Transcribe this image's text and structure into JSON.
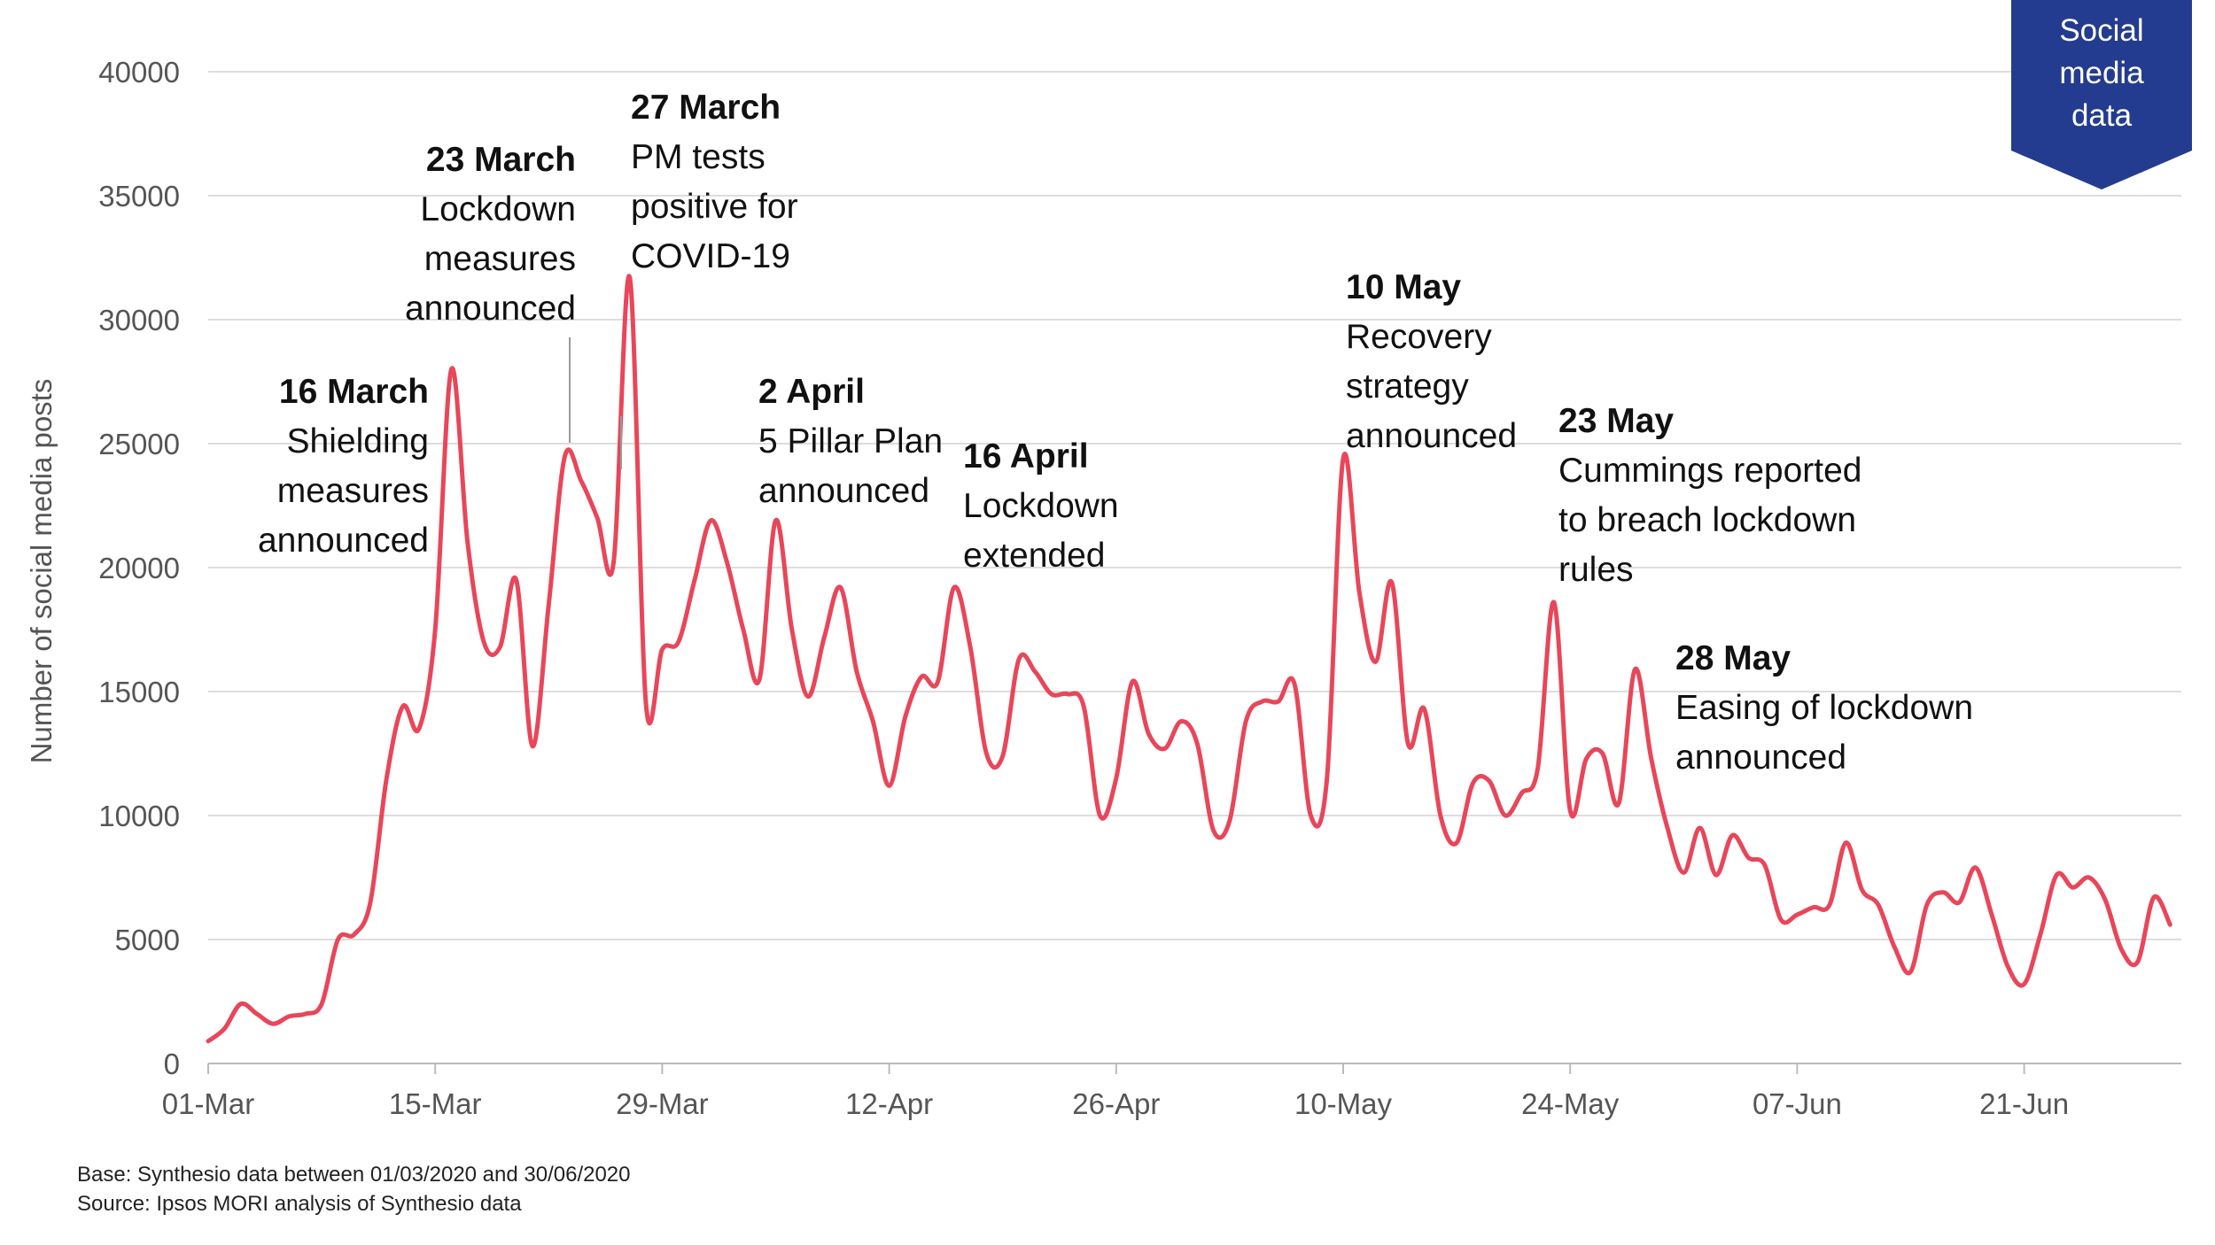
{
  "chart_data": {
    "type": "line",
    "ylabel": "Number of  social media posts",
    "ylim": [
      0,
      40000
    ],
    "yticks": [
      0,
      5000,
      10000,
      15000,
      20000,
      25000,
      30000,
      35000,
      40000
    ],
    "xticks": [
      "01-Mar",
      "15-Mar",
      "29-Mar",
      "12-Apr",
      "26-Apr",
      "10-May",
      "24-May",
      "07-Jun",
      "21-Jun"
    ],
    "grid": true,
    "series": [
      {
        "color": "#e8465a",
        "start_date": "2020-03-01",
        "values": [
          900,
          1400,
          2400,
          2000,
          1600,
          1900,
          2000,
          2400,
          5000,
          5200,
          6500,
          11500,
          14400,
          13500,
          17500,
          28000,
          21000,
          17000,
          16800,
          19500,
          12800,
          18500,
          24500,
          23500,
          22000,
          20200,
          31700,
          14500,
          16700,
          17000,
          19500,
          21900,
          20200,
          17500,
          15500,
          21900,
          17500,
          14800,
          17200,
          19200,
          15800,
          13800,
          11200,
          14000,
          15600,
          15400,
          19200,
          16800,
          12500,
          12400,
          16300,
          15800,
          14900,
          14900,
          14400,
          10000,
          11500,
          15400,
          13300,
          12700,
          13800,
          12900,
          9400,
          9800,
          13800,
          14600,
          14600,
          15300,
          10000,
          11500,
          24400,
          19000,
          16200,
          19400,
          12900,
          14300,
          10000,
          8900,
          11300,
          11400,
          10000,
          10900,
          11900,
          18600,
          10200,
          12300,
          12500,
          10500,
          15900,
          12300,
          9500,
          7700,
          9500,
          7600,
          9200,
          8300,
          8000,
          5800,
          6000,
          6300,
          6400,
          8900,
          7000,
          6400,
          4700,
          3700,
          6400,
          6900,
          6500,
          7900,
          6000,
          3900,
          3200,
          5200,
          7600,
          7100,
          7500,
          6600,
          4600,
          4100,
          6700,
          5600
        ]
      }
    ],
    "annotations": [
      {
        "head": "16 March",
        "lines": [
          "Shielding",
          "measures",
          "announced"
        ]
      },
      {
        "head": "23 March",
        "lines": [
          "Lockdown",
          "measures",
          "announced"
        ]
      },
      {
        "head": "27 March",
        "lines": [
          "PM tests",
          "positive for",
          "COVID-19"
        ]
      },
      {
        "head": "2 April",
        "lines": [
          "5 Pillar Plan",
          "announced"
        ]
      },
      {
        "head": "16 April",
        "lines": [
          "Lockdown",
          "extended"
        ]
      },
      {
        "head": "10 May",
        "lines": [
          "Recovery",
          "strategy",
          "announced"
        ]
      },
      {
        "head": "23 May",
        "lines": [
          "Cummings reported",
          "to breach lockdown",
          "rules"
        ]
      },
      {
        "head": "28 May",
        "lines": [
          "Easing of lockdown",
          "announced"
        ]
      }
    ]
  },
  "badge": {
    "lines": [
      "Social",
      "media",
      "data"
    ],
    "color": "#243c8f"
  },
  "footnotes": {
    "base": "Base: Synthesio data between 01/03/2020 and 30/06/2020",
    "source": "Source: Ipsos MORI analysis of Synthesio data"
  }
}
